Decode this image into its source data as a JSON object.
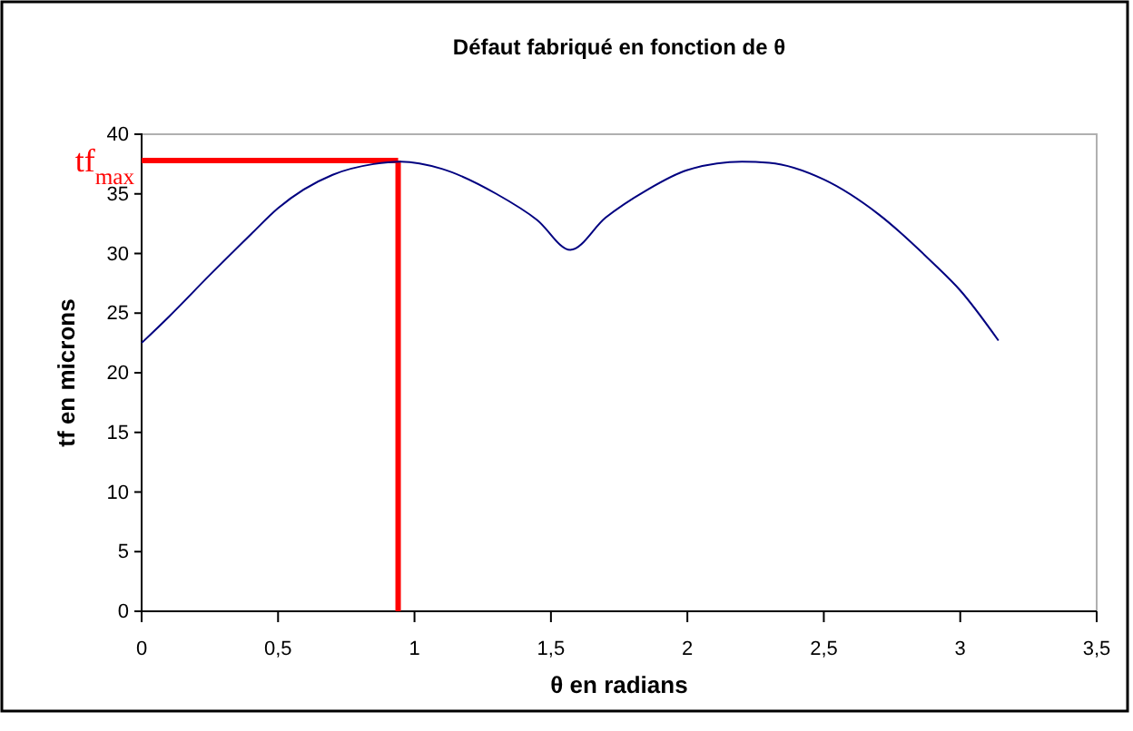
{
  "chart_data": {
    "type": "line",
    "title": "Défaut fabriqué en fonction de θ",
    "xlabel": "θ en radians",
    "ylabel": "tf en microns",
    "x": [
      0,
      0.1,
      0.25,
      0.4,
      0.5,
      0.7,
      0.85,
      0.95,
      1.1,
      1.3,
      1.45,
      1.571,
      1.7,
      1.85,
      2.0,
      2.2,
      2.3,
      2.5,
      2.7,
      2.9,
      3.0,
      3.14
    ],
    "series": [
      {
        "color": "#000080",
        "values": [
          22.5,
          24.7,
          28.2,
          31.6,
          33.8,
          36.6,
          37.5,
          37.7,
          37.1,
          35.0,
          32.8,
          30.3,
          33.0,
          35.3,
          37.0,
          37.7,
          37.6,
          36.2,
          33.3,
          29.2,
          26.9,
          22.7
        ]
      }
    ],
    "xlim": [
      0,
      3.5
    ],
    "xticks": [
      0,
      {
        "value": 0.5,
        "label": "0,5"
      },
      1,
      {
        "value": 1.5,
        "label": "1,5"
      },
      2,
      {
        "value": 2.5,
        "label": "2,5"
      },
      3,
      {
        "value": 3.5,
        "label": "3,5"
      }
    ],
    "ylim": [
      0,
      40
    ],
    "yticks": [
      0,
      5,
      10,
      15,
      20,
      25,
      30,
      35,
      40
    ],
    "ref_lines": [
      {
        "axis": "y",
        "value": 37.8,
        "label": "tf$_{max}$",
        "color": "#ff0000"
      },
      {
        "axis": "x",
        "value": 0.94,
        "color": "#ff0000"
      }
    ],
    "grid": false,
    "marker": "none",
    "line_style": "solid"
  }
}
